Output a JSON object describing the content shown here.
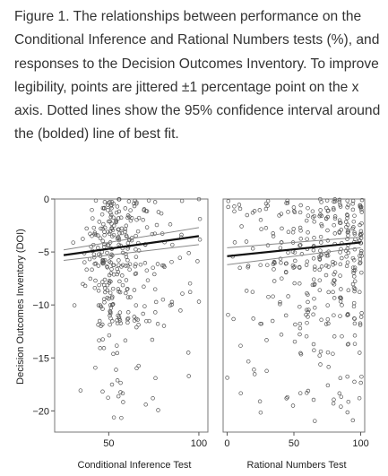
{
  "caption": "Figure 1. The relationships between performance on the Conditional Inference and Rational Numbers tests (%), and responses to the Decision Outcomes Inventory. To improve legibility, points are jittered ±1 percentage point on the x axis. Dotted lines show the 95% confidence interval around the (bolded) line of best fit.",
  "colors": {
    "points": "#555555",
    "fit": "#111111",
    "ci": "#888888"
  },
  "chart_data": [
    {
      "type": "scatter",
      "title": "",
      "xlabel": "Conditional Inference Test",
      "ylabel": "Decision Outcomes Inventory (DOI)",
      "xlim": [
        20,
        105
      ],
      "ylim": [
        -22,
        0
      ],
      "xticks": [
        50,
        100
      ],
      "yticks": [
        0,
        -5,
        -10,
        -15,
        -20
      ],
      "x_columns": [
        30,
        35,
        37,
        40,
        42,
        45,
        47,
        50,
        52,
        55,
        57,
        60,
        62,
        65,
        67,
        70,
        72,
        75,
        77,
        80,
        85,
        90,
        95,
        100
      ],
      "column_counts": [
        2,
        3,
        5,
        8,
        14,
        18,
        34,
        32,
        40,
        34,
        20,
        26,
        12,
        20,
        8,
        12,
        6,
        10,
        6,
        8,
        6,
        6,
        5,
        5
      ],
      "fit_line": {
        "x": [
          25,
          100
        ],
        "y": [
          -5.3,
          -3.5
        ]
      },
      "ci_upper": {
        "x": [
          25,
          100
        ],
        "y": [
          -4.8,
          -2.7
        ]
      },
      "ci_lower": {
        "x": [
          25,
          100
        ],
        "y": [
          -5.8,
          -4.3
        ]
      },
      "grid": false
    },
    {
      "type": "scatter",
      "title": "",
      "xlabel": "Rational Numbers Test",
      "ylabel": "",
      "xlim": [
        -3,
        103
      ],
      "ylim": [
        -22,
        0
      ],
      "xticks": [
        0,
        50,
        100
      ],
      "yticks": [],
      "x_columns": [
        0,
        5,
        10,
        15,
        20,
        25,
        30,
        35,
        40,
        45,
        50,
        55,
        60,
        65,
        70,
        75,
        80,
        85,
        90,
        95,
        100
      ],
      "column_counts": [
        4,
        5,
        6,
        6,
        7,
        8,
        10,
        10,
        12,
        14,
        16,
        18,
        20,
        22,
        24,
        24,
        26,
        28,
        30,
        34,
        36
      ],
      "fit_line": {
        "x": [
          0,
          100
        ],
        "y": [
          -5.4,
          -4.1
        ]
      },
      "ci_upper": {
        "x": [
          0,
          100
        ],
        "y": [
          -4.6,
          -3.6
        ]
      },
      "ci_lower": {
        "x": [
          0,
          100
        ],
        "y": [
          -6.2,
          -4.6
        ]
      },
      "grid": false
    }
  ]
}
